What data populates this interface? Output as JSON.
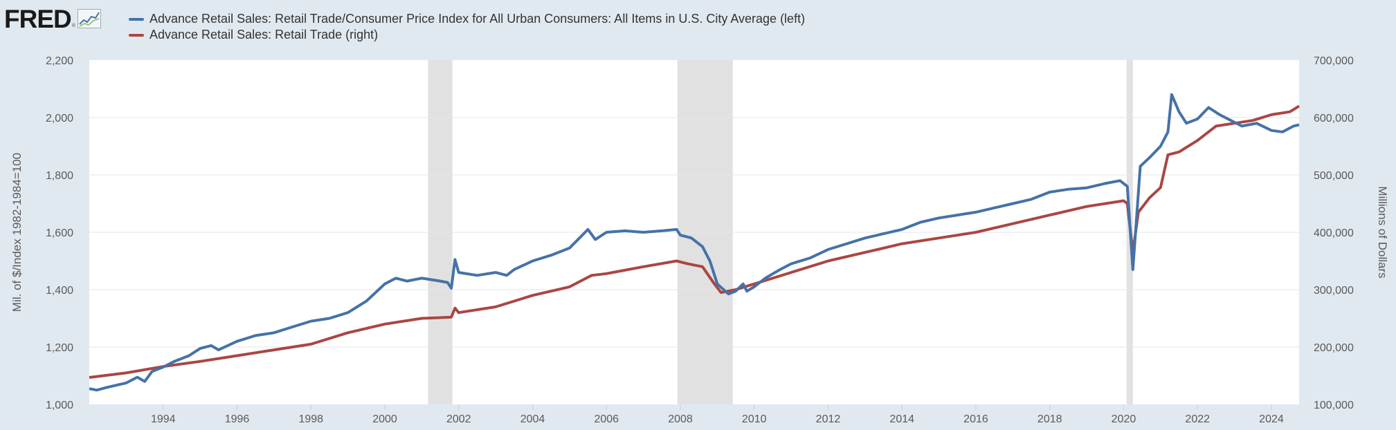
{
  "brand": {
    "logo_text": "FRED",
    "registered_mark": "®",
    "logo_icon": "line-chart-icon"
  },
  "colors": {
    "background": "#e1e9f0",
    "plot_bg": "#ffffff",
    "recession": "#e1e1e1",
    "grid": "#e6e6e6",
    "blue": "#4572a7",
    "red": "#aa4643"
  },
  "legend": [
    {
      "label": "Advance Retail Sales: Retail Trade/Consumer Price Index for All Urban Consumers: All Items in U.S. City Average (left)",
      "color": "#4572a7"
    },
    {
      "label": "Advance Retail Sales: Retail Trade (right)",
      "color": "#aa4643"
    }
  ],
  "chart_data": {
    "type": "line",
    "left_axis": {
      "label": "Mil. of $/Index 1982-1984=100",
      "range": [
        1000,
        2200
      ],
      "ticks": [
        "1,000",
        "1,200",
        "1,400",
        "1,600",
        "1,800",
        "2,000",
        "2,200"
      ]
    },
    "right_axis": {
      "label": "Millions of Dollars",
      "range": [
        100000,
        700000
      ],
      "ticks": [
        "100,000",
        "200,000",
        "300,000",
        "400,000",
        "500,000",
        "600,000",
        "700,000"
      ]
    },
    "x_range": [
      1992.0,
      2024.75
    ],
    "x_ticks": [
      "1994",
      "1996",
      "1998",
      "2000",
      "2002",
      "2004",
      "2006",
      "2008",
      "2010",
      "2012",
      "2014",
      "2016",
      "2018",
      "2020",
      "2022",
      "2024"
    ],
    "recessions": [
      [
        2001.17,
        2001.83
      ],
      [
        2007.92,
        2009.42
      ],
      [
        2020.08,
        2020.25
      ]
    ],
    "series": [
      {
        "name": "Advance Retail Sales: Retail Trade/Consumer Price Index for All Urban Consumers: All Items in U.S. City Average (left)",
        "axis": "left",
        "color": "#4572a7",
        "points": [
          [
            1992.0,
            1055
          ],
          [
            1992.2,
            1050
          ],
          [
            1992.5,
            1060
          ],
          [
            1993.0,
            1075
          ],
          [
            1993.3,
            1095
          ],
          [
            1993.5,
            1080
          ],
          [
            1993.7,
            1115
          ],
          [
            1994.0,
            1130
          ],
          [
            1994.3,
            1150
          ],
          [
            1994.7,
            1170
          ],
          [
            1995.0,
            1195
          ],
          [
            1995.3,
            1205
          ],
          [
            1995.5,
            1190
          ],
          [
            1996.0,
            1220
          ],
          [
            1996.5,
            1240
          ],
          [
            1997.0,
            1250
          ],
          [
            1997.5,
            1270
          ],
          [
            1998.0,
            1290
          ],
          [
            1998.5,
            1300
          ],
          [
            1999.0,
            1320
          ],
          [
            1999.5,
            1360
          ],
          [
            2000.0,
            1420
          ],
          [
            2000.3,
            1440
          ],
          [
            2000.6,
            1430
          ],
          [
            2001.0,
            1440
          ],
          [
            2001.5,
            1430
          ],
          [
            2001.7,
            1425
          ],
          [
            2001.8,
            1405
          ],
          [
            2001.9,
            1505
          ],
          [
            2002.0,
            1460
          ],
          [
            2002.5,
            1450
          ],
          [
            2003.0,
            1460
          ],
          [
            2003.3,
            1450
          ],
          [
            2003.5,
            1470
          ],
          [
            2004.0,
            1500
          ],
          [
            2004.5,
            1520
          ],
          [
            2005.0,
            1545
          ],
          [
            2005.5,
            1610
          ],
          [
            2005.7,
            1575
          ],
          [
            2006.0,
            1600
          ],
          [
            2006.5,
            1605
          ],
          [
            2007.0,
            1600
          ],
          [
            2007.5,
            1605
          ],
          [
            2007.9,
            1610
          ],
          [
            2008.0,
            1590
          ],
          [
            2008.3,
            1580
          ],
          [
            2008.6,
            1550
          ],
          [
            2008.8,
            1500
          ],
          [
            2009.0,
            1420
          ],
          [
            2009.3,
            1385
          ],
          [
            2009.5,
            1395
          ],
          [
            2009.7,
            1420
          ],
          [
            2009.8,
            1395
          ],
          [
            2010.0,
            1410
          ],
          [
            2010.3,
            1440
          ],
          [
            2010.7,
            1470
          ],
          [
            2011.0,
            1490
          ],
          [
            2011.5,
            1510
          ],
          [
            2012.0,
            1540
          ],
          [
            2012.5,
            1560
          ],
          [
            2013.0,
            1580
          ],
          [
            2013.5,
            1595
          ],
          [
            2014.0,
            1610
          ],
          [
            2014.5,
            1635
          ],
          [
            2015.0,
            1650
          ],
          [
            2015.5,
            1660
          ],
          [
            2016.0,
            1670
          ],
          [
            2016.5,
            1685
          ],
          [
            2017.0,
            1700
          ],
          [
            2017.5,
            1715
          ],
          [
            2018.0,
            1740
          ],
          [
            2018.5,
            1750
          ],
          [
            2019.0,
            1755
          ],
          [
            2019.5,
            1770
          ],
          [
            2019.9,
            1780
          ],
          [
            2020.1,
            1760
          ],
          [
            2020.25,
            1470
          ],
          [
            2020.45,
            1830
          ],
          [
            2020.7,
            1860
          ],
          [
            2021.0,
            1900
          ],
          [
            2021.2,
            1950
          ],
          [
            2021.3,
            2080
          ],
          [
            2021.5,
            2020
          ],
          [
            2021.7,
            1980
          ],
          [
            2022.0,
            1995
          ],
          [
            2022.3,
            2035
          ],
          [
            2022.6,
            2010
          ],
          [
            2022.9,
            1990
          ],
          [
            2023.2,
            1970
          ],
          [
            2023.6,
            1980
          ],
          [
            2024.0,
            1955
          ],
          [
            2024.3,
            1950
          ],
          [
            2024.6,
            1970
          ],
          [
            2024.75,
            1975
          ]
        ]
      },
      {
        "name": "Advance Retail Sales: Retail Trade (right)",
        "axis": "right",
        "color": "#aa4643",
        "points": [
          [
            1992.0,
            147000
          ],
          [
            1993.0,
            155000
          ],
          [
            1994.0,
            166000
          ],
          [
            1995.0,
            175000
          ],
          [
            1996.0,
            185000
          ],
          [
            1997.0,
            195000
          ],
          [
            1998.0,
            205000
          ],
          [
            1999.0,
            225000
          ],
          [
            2000.0,
            240000
          ],
          [
            2001.0,
            250000
          ],
          [
            2001.8,
            252000
          ],
          [
            2001.9,
            268000
          ],
          [
            2002.0,
            260000
          ],
          [
            2003.0,
            270000
          ],
          [
            2004.0,
            290000
          ],
          [
            2005.0,
            305000
          ],
          [
            2005.6,
            325000
          ],
          [
            2006.0,
            328000
          ],
          [
            2007.0,
            340000
          ],
          [
            2007.9,
            350000
          ],
          [
            2008.2,
            345000
          ],
          [
            2008.6,
            340000
          ],
          [
            2008.9,
            312000
          ],
          [
            2009.1,
            295000
          ],
          [
            2009.5,
            300000
          ],
          [
            2010.0,
            310000
          ],
          [
            2011.0,
            330000
          ],
          [
            2012.0,
            350000
          ],
          [
            2013.0,
            365000
          ],
          [
            2014.0,
            380000
          ],
          [
            2015.0,
            390000
          ],
          [
            2016.0,
            400000
          ],
          [
            2017.0,
            415000
          ],
          [
            2018.0,
            430000
          ],
          [
            2019.0,
            445000
          ],
          [
            2020.0,
            455000
          ],
          [
            2020.1,
            450000
          ],
          [
            2020.25,
            365000
          ],
          [
            2020.4,
            435000
          ],
          [
            2020.7,
            460000
          ],
          [
            2021.0,
            478000
          ],
          [
            2021.2,
            535000
          ],
          [
            2021.5,
            540000
          ],
          [
            2022.0,
            560000
          ],
          [
            2022.5,
            585000
          ],
          [
            2023.0,
            590000
          ],
          [
            2023.5,
            595000
          ],
          [
            2024.0,
            605000
          ],
          [
            2024.5,
            610000
          ],
          [
            2024.75,
            620000
          ]
        ]
      }
    ]
  }
}
